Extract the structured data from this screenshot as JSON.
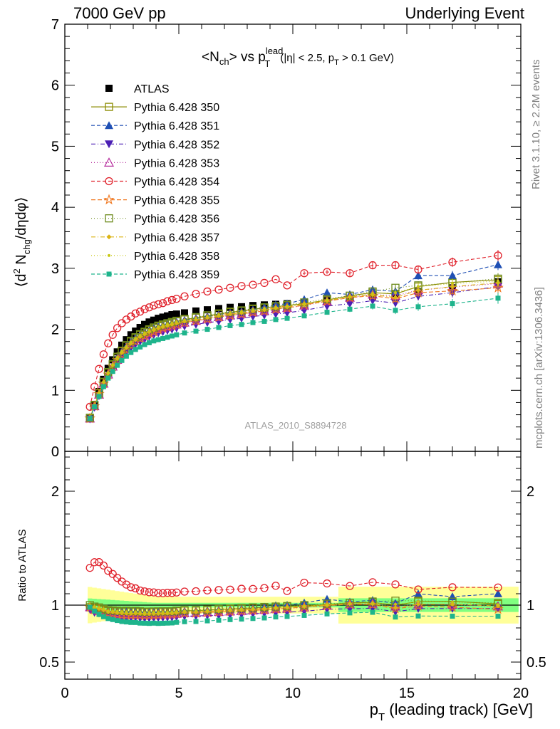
{
  "header": {
    "left": "7000 GeV pp",
    "right": "Underlying Event",
    "rivet_note": "Rivet 3.1.10, ≥ 2.2M events",
    "mcplots_note": "mcplots.cern.ch [arXiv:1306.3436]"
  },
  "chart_data": {
    "type": "scatter",
    "title": "<N_ch> vs p_T^lead (|η| < 2.5, p_T > 0.1 GeV)",
    "analysis_label": "ATLAS_2010_S8894728",
    "xlabel": "p_T (leading track) [GeV]",
    "ylabel": "⟨d² N_chg/dηdφ⟩",
    "ratio_ylabel": "Ratio to ATLAS",
    "xlim": [
      0,
      20
    ],
    "ylim": [
      0,
      7
    ],
    "ratio_ylim": [
      0.35,
      2.35
    ],
    "x_ticks": [
      0,
      5,
      10,
      15,
      20
    ],
    "y_ticks": [
      0,
      1,
      2,
      3,
      4,
      5,
      6,
      7
    ],
    "ratio_y_ticks": [
      0.5,
      1,
      2
    ],
    "legend_position": "top-left",
    "x": [
      1.1,
      1.3,
      1.5,
      1.7,
      1.9,
      2.1,
      2.3,
      2.5,
      2.7,
      2.9,
      3.1,
      3.3,
      3.5,
      3.7,
      3.9,
      4.1,
      4.3,
      4.5,
      4.7,
      4.9,
      5.25,
      5.75,
      6.25,
      6.75,
      7.25,
      7.75,
      8.25,
      8.75,
      9.25,
      9.75,
      10.5,
      11.5,
      12.5,
      13.5,
      14.5,
      15.5,
      17.0,
      19.0
    ],
    "series": [
      {
        "name": "ATLAS",
        "color": "#000000",
        "marker": "filled-square",
        "dash": "",
        "values": [
          0.55,
          0.77,
          0.98,
          1.18,
          1.36,
          1.5,
          1.63,
          1.74,
          1.83,
          1.91,
          1.97,
          2.03,
          2.08,
          2.12,
          2.15,
          2.18,
          2.2,
          2.22,
          2.24,
          2.25,
          2.27,
          2.3,
          2.32,
          2.34,
          2.36,
          2.37,
          2.39,
          2.4,
          2.41,
          2.42,
          2.44,
          2.47,
          2.5,
          2.54,
          2.58,
          2.62,
          2.68,
          2.78
        ]
      },
      {
        "name": "Pythia 6.428 350",
        "color": "#8b8b00",
        "marker": "open-square",
        "dash": "",
        "values": [
          0.54,
          0.75,
          0.95,
          1.13,
          1.29,
          1.42,
          1.54,
          1.64,
          1.73,
          1.8,
          1.86,
          1.91,
          1.95,
          1.99,
          2.02,
          2.05,
          2.07,
          2.09,
          2.11,
          2.13,
          2.16,
          2.19,
          2.22,
          2.25,
          2.28,
          2.3,
          2.33,
          2.35,
          2.37,
          2.39,
          2.42,
          2.48,
          2.55,
          2.6,
          2.58,
          2.7,
          2.77,
          2.81
        ]
      },
      {
        "name": "Pythia 6.428 351",
        "color": "#1f4fb4",
        "marker": "filled-triangle-up",
        "dash": "5,3",
        "values": [
          0.54,
          0.74,
          0.94,
          1.12,
          1.28,
          1.41,
          1.53,
          1.63,
          1.72,
          1.79,
          1.85,
          1.9,
          1.94,
          1.98,
          2.01,
          2.04,
          2.06,
          2.08,
          2.1,
          2.12,
          2.15,
          2.18,
          2.21,
          2.24,
          2.27,
          2.29,
          2.32,
          2.36,
          2.4,
          2.42,
          2.49,
          2.6,
          2.57,
          2.65,
          2.62,
          2.88,
          2.88,
          3.06
        ]
      },
      {
        "name": "Pythia 6.428 352",
        "color": "#4b1fb4",
        "marker": "filled-triangle-down",
        "dash": "6,3,1,3",
        "values": [
          0.53,
          0.72,
          0.91,
          1.08,
          1.23,
          1.35,
          1.46,
          1.55,
          1.63,
          1.7,
          1.76,
          1.8,
          1.84,
          1.88,
          1.91,
          1.94,
          1.96,
          1.98,
          2.0,
          2.02,
          2.05,
          2.08,
          2.11,
          2.13,
          2.16,
          2.18,
          2.21,
          2.23,
          2.25,
          2.27,
          2.31,
          2.38,
          2.42,
          2.47,
          2.43,
          2.54,
          2.6,
          2.7
        ]
      },
      {
        "name": "Pythia 6.428 353",
        "color": "#b4289b",
        "marker": "open-triangle-up",
        "dash": "1,3",
        "values": [
          0.54,
          0.74,
          0.93,
          1.11,
          1.26,
          1.39,
          1.5,
          1.6,
          1.68,
          1.75,
          1.81,
          1.86,
          1.9,
          1.94,
          1.97,
          2.0,
          2.02,
          2.04,
          2.06,
          2.08,
          2.11,
          2.14,
          2.17,
          2.2,
          2.23,
          2.25,
          2.28,
          2.3,
          2.33,
          2.35,
          2.39,
          2.46,
          2.52,
          2.57,
          2.55,
          2.64,
          2.69,
          2.75
        ]
      },
      {
        "name": "Pythia 6.428 354",
        "color": "#e0202a",
        "marker": "open-circle",
        "dash": "5,3",
        "values": [
          0.73,
          1.06,
          1.35,
          1.59,
          1.77,
          1.91,
          2.02,
          2.1,
          2.16,
          2.21,
          2.26,
          2.29,
          2.33,
          2.36,
          2.39,
          2.41,
          2.43,
          2.46,
          2.48,
          2.5,
          2.54,
          2.58,
          2.62,
          2.65,
          2.68,
          2.71,
          2.73,
          2.76,
          2.82,
          2.72,
          2.92,
          2.94,
          2.92,
          3.05,
          3.05,
          2.98,
          3.1,
          3.21
        ]
      },
      {
        "name": "Pythia 6.428 355",
        "color": "#f07820",
        "marker": "open-star",
        "dash": "6,3",
        "values": [
          0.54,
          0.74,
          0.94,
          1.11,
          1.26,
          1.39,
          1.5,
          1.59,
          1.67,
          1.74,
          1.8,
          1.85,
          1.89,
          1.93,
          1.96,
          1.99,
          2.02,
          2.04,
          2.06,
          2.08,
          2.11,
          2.14,
          2.17,
          2.2,
          2.23,
          2.25,
          2.28,
          2.3,
          2.33,
          2.35,
          2.4,
          2.46,
          2.52,
          2.55,
          2.5,
          2.6,
          2.63,
          2.68
        ]
      },
      {
        "name": "Pythia 6.428 356",
        "color": "#6e8c1e",
        "marker": "open-square",
        "dash": "1,3",
        "values": [
          0.55,
          0.76,
          0.96,
          1.14,
          1.3,
          1.43,
          1.55,
          1.65,
          1.74,
          1.81,
          1.87,
          1.92,
          1.96,
          2.0,
          2.03,
          2.06,
          2.08,
          2.1,
          2.12,
          2.14,
          2.17,
          2.2,
          2.23,
          2.26,
          2.29,
          2.31,
          2.34,
          2.36,
          2.38,
          2.4,
          2.44,
          2.5,
          2.55,
          2.62,
          2.68,
          2.72,
          2.76,
          2.83
        ]
      },
      {
        "name": "Pythia 6.428 357",
        "color": "#dcb414",
        "marker": "filled-diamond",
        "dash": "6,3,1,3",
        "values": [
          0.54,
          0.75,
          0.95,
          1.13,
          1.28,
          1.41,
          1.52,
          1.62,
          1.7,
          1.77,
          1.83,
          1.88,
          1.92,
          1.96,
          1.99,
          2.02,
          2.04,
          2.06,
          2.08,
          2.1,
          2.13,
          2.16,
          2.19,
          2.22,
          2.25,
          2.27,
          2.3,
          2.32,
          2.35,
          2.37,
          2.41,
          2.47,
          2.53,
          2.57,
          2.52,
          2.64,
          2.7,
          2.76
        ]
      },
      {
        "name": "Pythia 6.428 358",
        "color": "#c8c814",
        "marker": "filled-dot",
        "dash": "1,3",
        "values": [
          0.55,
          0.76,
          0.96,
          1.14,
          1.29,
          1.42,
          1.54,
          1.64,
          1.72,
          1.79,
          1.85,
          1.9,
          1.94,
          1.98,
          2.01,
          2.04,
          2.06,
          2.08,
          2.1,
          2.12,
          2.15,
          2.18,
          2.21,
          2.24,
          2.27,
          2.29,
          2.32,
          2.34,
          2.36,
          2.38,
          2.42,
          2.48,
          2.53,
          2.59,
          2.6,
          2.7,
          2.75,
          2.79
        ]
      },
      {
        "name": "Pythia 6.428 359",
        "color": "#1eb48c",
        "marker": "filled-small-square",
        "dash": "5,3",
        "values": [
          0.54,
          0.73,
          0.9,
          1.06,
          1.2,
          1.31,
          1.41,
          1.49,
          1.56,
          1.62,
          1.67,
          1.71,
          1.75,
          1.78,
          1.81,
          1.83,
          1.85,
          1.87,
          1.89,
          1.91,
          1.94,
          1.97,
          2.0,
          2.03,
          2.06,
          2.08,
          2.11,
          2.13,
          2.16,
          2.18,
          2.22,
          2.28,
          2.33,
          2.38,
          2.31,
          2.37,
          2.42,
          2.51
        ]
      }
    ]
  }
}
